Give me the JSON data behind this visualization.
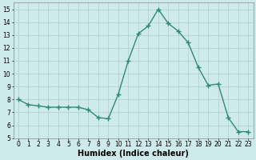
{
  "x": [
    0,
    1,
    2,
    3,
    4,
    5,
    6,
    7,
    8,
    9,
    10,
    11,
    12,
    13,
    14,
    15,
    16,
    17,
    18,
    19,
    20,
    21,
    22,
    23
  ],
  "y": [
    8.0,
    7.6,
    7.5,
    7.4,
    7.4,
    7.4,
    7.4,
    7.2,
    6.6,
    6.5,
    8.4,
    11.0,
    13.1,
    13.7,
    15.0,
    13.9,
    13.3,
    12.4,
    10.5,
    9.1,
    9.2,
    6.6,
    5.5,
    5.5
  ],
  "line_color": "#2e8b74",
  "marker": "+",
  "marker_size": 4,
  "line_width": 1.0,
  "bg_color": "#ceeaea",
  "grid_color": "#b0cece",
  "xlabel": "Humidex (Indice chaleur)",
  "xlim": [
    -0.5,
    23.5
  ],
  "ylim": [
    5,
    15.5
  ],
  "yticks": [
    5,
    6,
    7,
    8,
    9,
    10,
    11,
    12,
    13,
    14,
    15
  ],
  "xticks": [
    0,
    1,
    2,
    3,
    4,
    5,
    6,
    7,
    8,
    9,
    10,
    11,
    12,
    13,
    14,
    15,
    16,
    17,
    18,
    19,
    20,
    21,
    22,
    23
  ],
  "axis_fontsize": 6.5,
  "tick_fontsize": 5.5,
  "xlabel_fontsize": 7.0
}
